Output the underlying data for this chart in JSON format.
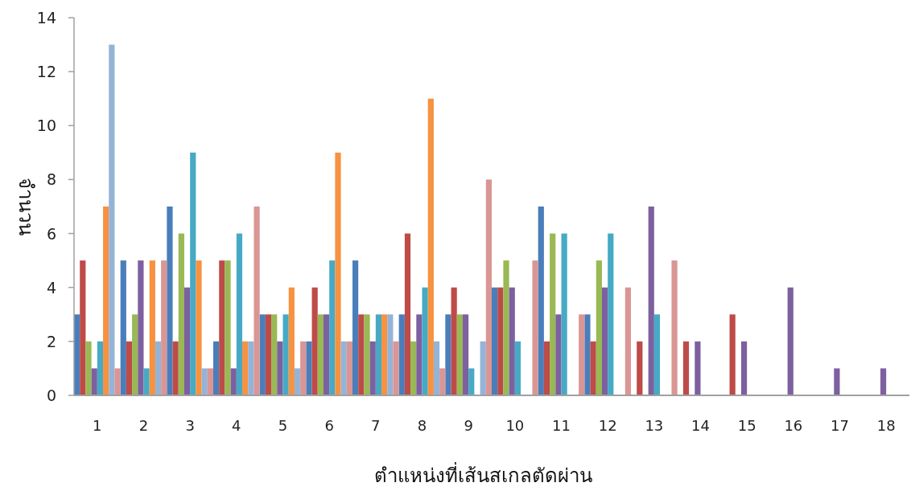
{
  "chart_data": {
    "type": "bar",
    "xlabel": "ตำแหน่งที่เส้นสเกลตัดผ่าน",
    "ylabel": "จำนวน",
    "categories": [
      "1",
      "2",
      "3",
      "4",
      "5",
      "6",
      "7",
      "8",
      "9",
      "10",
      "11",
      "12",
      "13",
      "14",
      "15",
      "16",
      "17",
      "18"
    ],
    "series": [
      {
        "color": "#4a7ebb",
        "values": [
          3,
          5,
          7,
          2,
          3,
          2,
          5,
          3,
          3,
          4,
          7,
          3,
          null,
          null,
          null,
          null,
          null,
          null
        ]
      },
      {
        "color": "#be4b48",
        "values": [
          5,
          2,
          2,
          5,
          3,
          4,
          3,
          6,
          4,
          4,
          2,
          2,
          2,
          2,
          3,
          null,
          null,
          null
        ]
      },
      {
        "color": "#98b954",
        "values": [
          2,
          3,
          6,
          5,
          3,
          3,
          3,
          2,
          3,
          5,
          6,
          5,
          null,
          null,
          null,
          null,
          null,
          null
        ]
      },
      {
        "color": "#7d60a0",
        "values": [
          1,
          5,
          4,
          1,
          2,
          3,
          2,
          3,
          3,
          4,
          3,
          4,
          7,
          2,
          2,
          4,
          1,
          1
        ]
      },
      {
        "color": "#46aac5",
        "values": [
          2,
          1,
          9,
          6,
          3,
          5,
          3,
          4,
          1,
          2,
          6,
          6,
          3,
          null,
          null,
          null,
          null,
          null
        ]
      },
      {
        "color": "#f69240",
        "values": [
          7,
          5,
          5,
          2,
          4,
          9,
          3,
          11,
          null,
          null,
          null,
          null,
          null,
          null,
          null,
          null,
          null,
          null
        ]
      },
      {
        "color": "#95b3d7",
        "values": [
          13,
          2,
          1,
          2,
          1,
          2,
          3,
          2,
          2,
          null,
          null,
          null,
          null,
          null,
          null,
          null,
          null,
          null
        ]
      },
      {
        "color": "#d99694",
        "values": [
          1,
          5,
          1,
          7,
          2,
          2,
          2,
          1,
          8,
          5,
          3,
          4,
          5,
          null,
          null,
          null,
          null,
          null
        ]
      }
    ],
    "ylim": [
      0,
      14
    ],
    "yticks": [
      0,
      2,
      4,
      6,
      8,
      10,
      12,
      14
    ]
  }
}
